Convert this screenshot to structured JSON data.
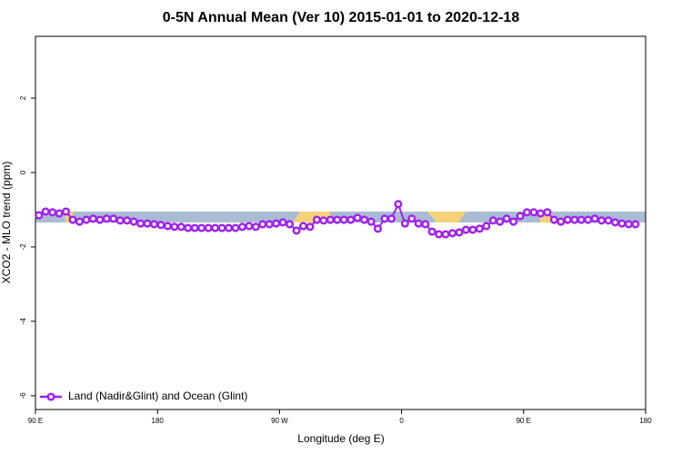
{
  "chart_data": {
    "type": "line",
    "title": "0-5N Annual Mean (Ver 10)   2015-01-01 to 2020-12-18",
    "x_label": "Longitude (deg E)",
    "y_label": "XCO2 - MLO trend (ppm)",
    "legend": "bottom-left",
    "xlim": [
      90,
      540
    ],
    "xticks": [
      {
        "value": 90,
        "label": "90 E"
      },
      {
        "value": 180,
        "label": "180"
      },
      {
        "value": 270,
        "label": "90 W"
      },
      {
        "value": 360,
        "label": "0"
      },
      {
        "value": 450,
        "label": "90 E"
      },
      {
        "value": 540,
        "label": "180"
      }
    ],
    "ylim": [
      -6.37,
      3.66
    ],
    "yticks": [
      -6,
      -4,
      -2,
      0,
      2
    ],
    "x": [
      92.5,
      97.5,
      102.5,
      107.5,
      112.5,
      117.5,
      122.5,
      127.5,
      132.5,
      137.5,
      142.5,
      147.5,
      152.5,
      157.5,
      162.5,
      167.5,
      172.5,
      177.5,
      182.5,
      187.5,
      192.5,
      197.5,
      202.5,
      207.5,
      212.5,
      217.5,
      222.5,
      227.5,
      232.5,
      237.5,
      242.5,
      247.5,
      252.5,
      257.5,
      262.5,
      267.5,
      272.5,
      277.5,
      282.5,
      287.5,
      292.5,
      297.5,
      302.5,
      307.5,
      312.5,
      317.5,
      322.5,
      327.5,
      332.5,
      337.5,
      342.5,
      347.5,
      352.5,
      357.5,
      362.5,
      367.5,
      372.5,
      377.5,
      382.5,
      387.5,
      392.5,
      397.5,
      402.5,
      407.5,
      412.5,
      417.5,
      422.5,
      427.5,
      432.5,
      437.5,
      442.5,
      447.5,
      452.5,
      457.5,
      462.5,
      467.5,
      472.5,
      477.5,
      482.5,
      487.5,
      492.5,
      497.5,
      502.5,
      507.5,
      512.5,
      517.5,
      522.5,
      527.5,
      532.5
    ],
    "series": [
      {
        "name": "Land (Nadir&Glint) and Ocean (Glint)",
        "color": "#a020f0",
        "values": [
          -1.15,
          -1.05,
          -1.07,
          -1.1,
          -1.05,
          -1.27,
          -1.32,
          -1.27,
          -1.24,
          -1.27,
          -1.24,
          -1.24,
          -1.29,
          -1.29,
          -1.32,
          -1.37,
          -1.37,
          -1.39,
          -1.41,
          -1.44,
          -1.46,
          -1.46,
          -1.49,
          -1.49,
          -1.49,
          -1.49,
          -1.49,
          -1.49,
          -1.49,
          -1.49,
          -1.46,
          -1.44,
          -1.46,
          -1.39,
          -1.39,
          -1.37,
          -1.34,
          -1.39,
          -1.56,
          -1.44,
          -1.46,
          -1.27,
          -1.29,
          -1.27,
          -1.27,
          -1.27,
          -1.27,
          -1.22,
          -1.27,
          -1.32,
          -1.51,
          -1.24,
          -1.24,
          -0.85,
          -1.37,
          -1.24,
          -1.37,
          -1.39,
          -1.59,
          -1.66,
          -1.66,
          -1.63,
          -1.61,
          -1.54,
          -1.54,
          -1.51,
          -1.44,
          -1.29,
          -1.32,
          -1.24,
          -1.32,
          -1.17,
          -1.07,
          -1.07,
          -1.1,
          -1.07,
          -1.27,
          -1.32,
          -1.27,
          -1.27,
          -1.27,
          -1.27,
          -1.24,
          -1.29,
          -1.29,
          -1.34,
          -1.37,
          -1.39,
          -1.39
        ]
      }
    ]
  }
}
